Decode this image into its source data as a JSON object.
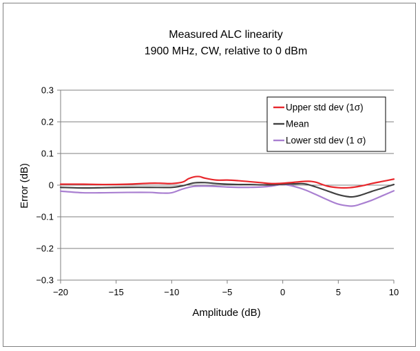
{
  "chart_data": {
    "type": "line",
    "title": [
      "Measured ALC linearity",
      "1900 MHz, CW, relative to 0 dBm"
    ],
    "xlabel": "Amplitude  (dB)",
    "ylabel": "Error (dB)",
    "xlim": [
      -20,
      10
    ],
    "ylim": [
      -0.3,
      0.3
    ],
    "x_ticks": [
      -20,
      -15,
      -10,
      -5,
      0,
      5,
      10
    ],
    "x_tick_labels": [
      "−20",
      "−15",
      "−10",
      "−5",
      "0",
      "5",
      "10"
    ],
    "y_ticks": [
      -0.3,
      -0.2,
      -0.1,
      0,
      0.1,
      0.2,
      0.3
    ],
    "y_tick_labels": [
      "−0.3",
      "−0.2",
      "−0.1",
      "0",
      "0.1",
      "0.2",
      "0.3"
    ],
    "grid": "horizontal",
    "legend_position": "top-right",
    "series": [
      {
        "name": "Upper std dev (1σ)",
        "color": "#e8262b",
        "x": [
          -20,
          -18,
          -16,
          -14,
          -12,
          -11,
          -10,
          -9,
          -8.5,
          -8,
          -7.5,
          -7,
          -6,
          -5,
          -4,
          -3,
          -2,
          -1,
          0,
          1,
          2,
          2.5,
          3,
          4,
          5,
          6,
          7,
          8,
          9,
          10
        ],
        "y": [
          0.003,
          0.003,
          0.002,
          0.003,
          0.006,
          0.006,
          0.005,
          0.01,
          0.02,
          0.026,
          0.027,
          0.022,
          0.016,
          0.016,
          0.014,
          0.011,
          0.008,
          0.005,
          0.006,
          0.009,
          0.012,
          0.012,
          0.009,
          -0.003,
          -0.008,
          -0.008,
          -0.003,
          0.005,
          0.012,
          0.019
        ]
      },
      {
        "name": "Mean",
        "color": "#404040",
        "x": [
          -20,
          -18,
          -16,
          -14,
          -12,
          -10,
          -9,
          -8,
          -7,
          -6,
          -5,
          -4,
          -3,
          -2,
          -1,
          0,
          1,
          2,
          3,
          4,
          5,
          6,
          6.5,
          7,
          8,
          9,
          10
        ],
        "y": [
          -0.007,
          -0.009,
          -0.008,
          -0.007,
          -0.007,
          -0.007,
          -0.002,
          0.007,
          0.008,
          0.005,
          0.003,
          0.002,
          0.002,
          0.001,
          0.001,
          0.003,
          0.004,
          0.004,
          -0.006,
          -0.018,
          -0.03,
          -0.037,
          -0.036,
          -0.032,
          -0.02,
          -0.009,
          0.002
        ]
      },
      {
        "name": "Lower std dev (1 σ)",
        "color": "#a97fd1",
        "x": [
          -20,
          -18,
          -16,
          -14,
          -12,
          -11,
          -10,
          -9,
          -8,
          -7,
          -6,
          -5,
          -4,
          -3,
          -2,
          -1,
          0,
          1,
          2,
          3,
          4,
          5,
          6,
          6.5,
          7,
          8,
          9,
          10
        ],
        "y": [
          -0.019,
          -0.024,
          -0.024,
          -0.023,
          -0.023,
          -0.025,
          -0.024,
          -0.012,
          -0.004,
          -0.003,
          -0.004,
          -0.006,
          -0.007,
          -0.007,
          -0.006,
          -0.003,
          0.002,
          -0.004,
          -0.015,
          -0.03,
          -0.046,
          -0.06,
          -0.066,
          -0.065,
          -0.06,
          -0.048,
          -0.033,
          -0.018
        ]
      }
    ]
  }
}
